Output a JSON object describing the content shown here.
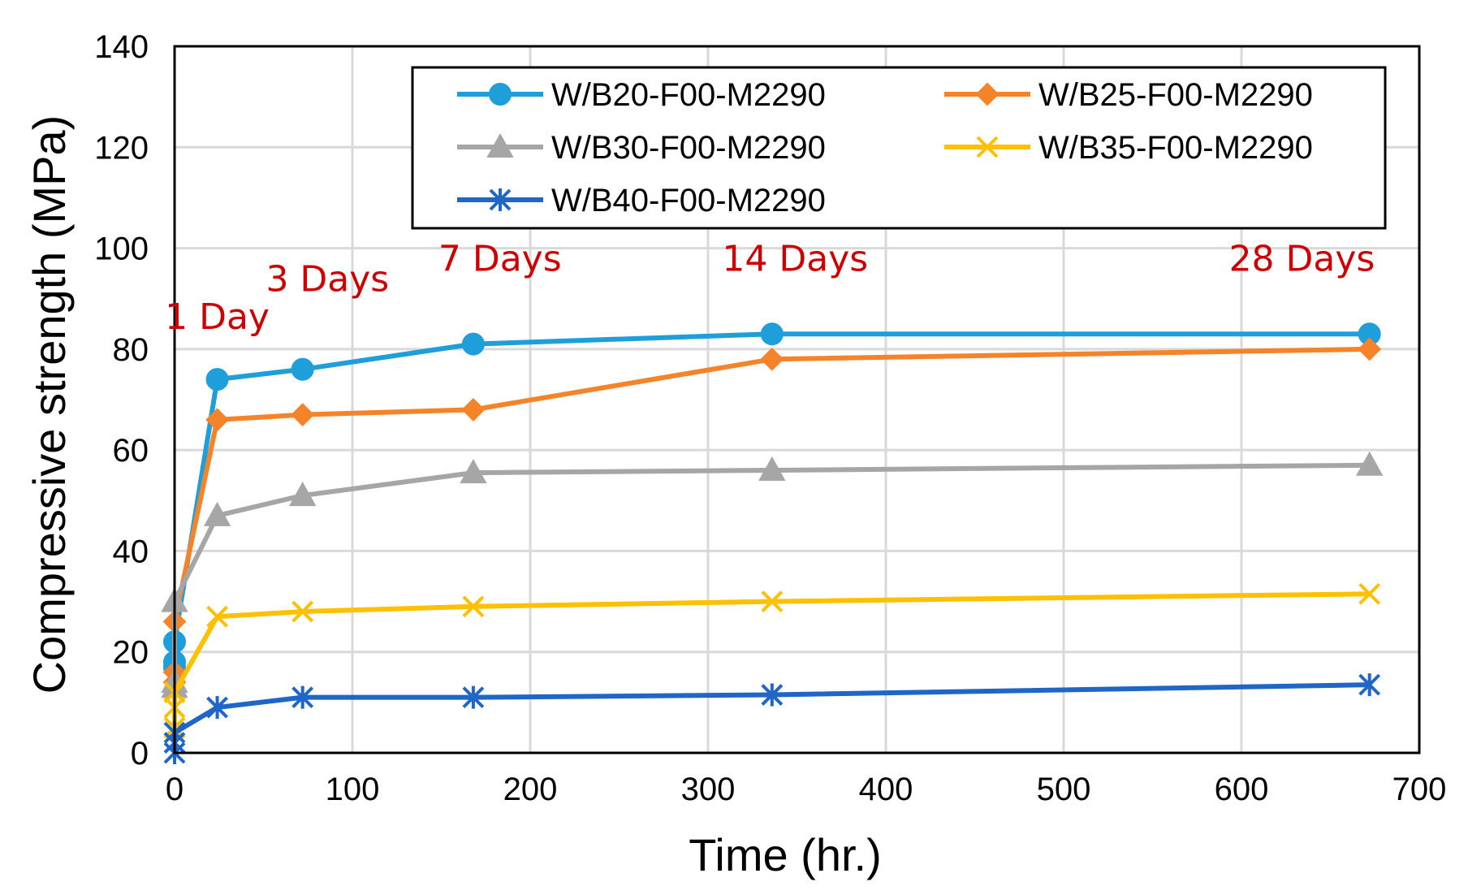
{
  "chart_data": {
    "type": "line",
    "xlabel": "Time (hr.)",
    "ylabel": "Compressive strength (MPa)",
    "xlim": [
      0,
      700
    ],
    "ylim": [
      0,
      140
    ],
    "xticks": [
      0,
      100,
      200,
      300,
      400,
      500,
      600,
      700
    ],
    "yticks": [
      0,
      20,
      40,
      60,
      80,
      100,
      120,
      140
    ],
    "grid": true,
    "legend_position": "top-right",
    "series": [
      {
        "name": "W/B20-F00-M2290",
        "color": "#1F9FD9",
        "marker": "circle",
        "x": [
          0,
          0,
          0,
          24,
          72,
          168,
          336,
          672
        ],
        "y": [
          17,
          18,
          22,
          74,
          76,
          81,
          83,
          83
        ]
      },
      {
        "name": "W/B25-F00-M2290",
        "color": "#F5832A",
        "marker": "diamond",
        "x": [
          0,
          0,
          0,
          24,
          72,
          168,
          336,
          672
        ],
        "y": [
          14,
          16,
          26,
          66,
          67,
          68,
          78,
          80
        ]
      },
      {
        "name": "W/B30-F00-M2290",
        "color": "#A6A6A6",
        "marker": "triangle",
        "x": [
          0,
          0,
          0,
          24,
          72,
          168,
          336,
          672
        ],
        "y": [
          13,
          14,
          30,
          47,
          51,
          55.5,
          56,
          57
        ]
      },
      {
        "name": "W/B35-F00-M2290",
        "color": "#FFC000",
        "marker": "x",
        "x": [
          0,
          0,
          0,
          24,
          72,
          168,
          336,
          672
        ],
        "y": [
          5,
          9,
          12,
          27,
          28,
          29,
          30,
          31.5
        ]
      },
      {
        "name": "W/B40-F00-M2290",
        "color": "#1F66C6",
        "marker": "asterisk",
        "x": [
          0,
          0,
          0,
          24,
          72,
          168,
          336,
          672
        ],
        "y": [
          0,
          2,
          4,
          9,
          11,
          11,
          11.5,
          13.5
        ]
      }
    ],
    "annotations": [
      {
        "text": "1 Day",
        "x": 24,
        "y": 84
      },
      {
        "text": "3 Days",
        "x": 86,
        "y": 91.5
      },
      {
        "text": "7 Days",
        "x": 183,
        "y": 95.5
      },
      {
        "text": "14 Days",
        "x": 349,
        "y": 95.5
      },
      {
        "text": "28 Days",
        "x": 634,
        "y": 95.5
      }
    ],
    "annotation_color": "#CC0000"
  }
}
